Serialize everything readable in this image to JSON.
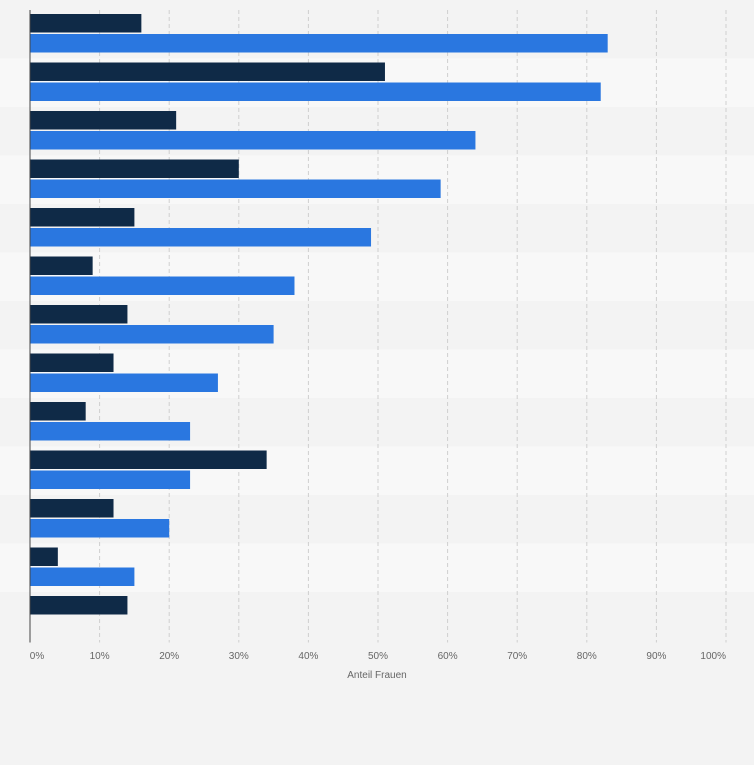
{
  "chart_data": {
    "type": "bar",
    "orientation": "horizontal",
    "xlabel": "Anteil Frauen",
    "ylabel": "",
    "xlim": [
      0,
      100
    ],
    "x_ticks": [
      "0%",
      "10%",
      "20%",
      "30%",
      "40%",
      "50%",
      "60%",
      "70%",
      "80%",
      "90%",
      "100%"
    ],
    "grid": true,
    "legend": "none",
    "categories": [
      "",
      "",
      "",
      "",
      "",
      "",
      "",
      "",
      "",
      "",
      "",
      "",
      ""
    ],
    "series": [
      {
        "color": "#0f2a47",
        "values": [
          16,
          51,
          21,
          30,
          15,
          9,
          14,
          12,
          8,
          34,
          12,
          4,
          14
        ]
      },
      {
        "color": "#2a77e0",
        "values": [
          83,
          82,
          64,
          59,
          49,
          38,
          35,
          27,
          23,
          23,
          20,
          15,
          null
        ]
      }
    ]
  }
}
